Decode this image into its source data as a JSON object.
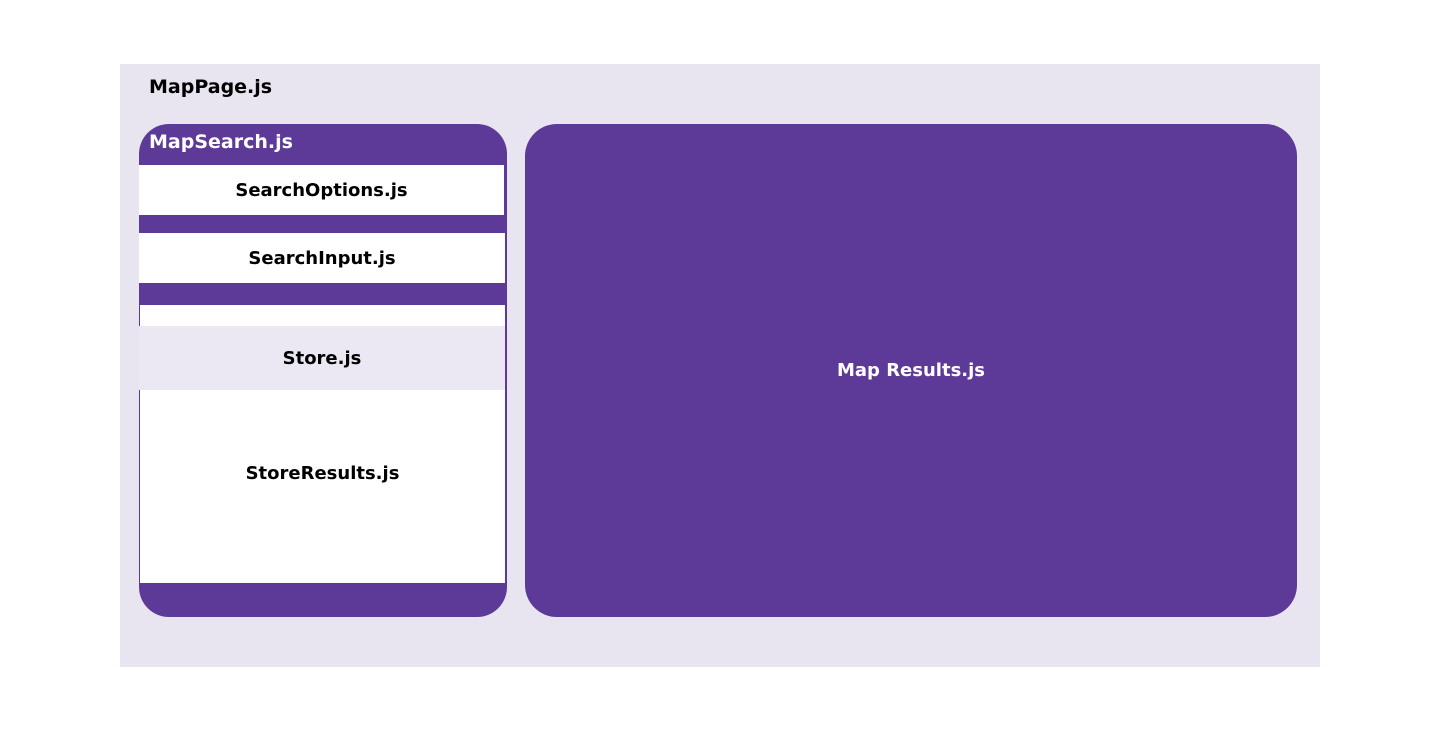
{
  "page": {
    "title": "MapPage.js"
  },
  "map_search": {
    "title": "MapSearch.js",
    "search_options": "SearchOptions.js",
    "search_input": "SearchInput.js",
    "store": "Store.js",
    "store_results": "StoreResults.js"
  },
  "map_results": {
    "title": "Map Results.js"
  },
  "colors": {
    "accent": "#5d3a98",
    "background": "#e8e4f0",
    "store": "#ece8f3"
  }
}
